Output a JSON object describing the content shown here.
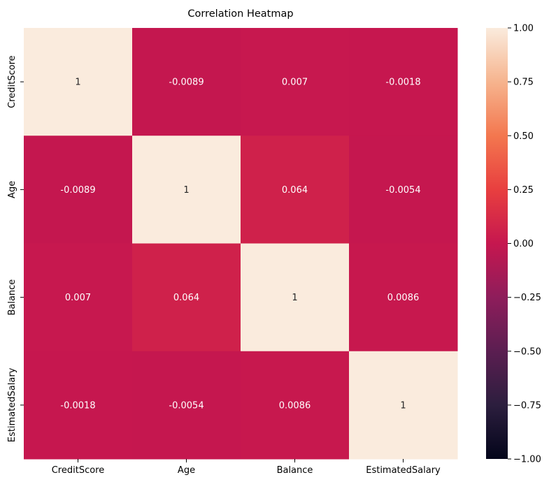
{
  "chart_data": {
    "type": "heatmap",
    "title": "Correlation Heatmap",
    "x_labels": [
      "CreditScore",
      "Age",
      "Balance",
      "EstimatedSalary"
    ],
    "y_labels": [
      "CreditScore",
      "Age",
      "Balance",
      "EstimatedSalary"
    ],
    "values": [
      [
        1,
        -0.0089,
        0.007,
        -0.0018
      ],
      [
        -0.0089,
        1,
        0.064,
        -0.0054
      ],
      [
        0.007,
        0.064,
        1,
        0.0086
      ],
      [
        -0.0018,
        -0.0054,
        0.0086,
        1
      ]
    ],
    "annotations": [
      [
        "1",
        "-0.0089",
        "0.007",
        "-0.0018"
      ],
      [
        "-0.0089",
        "1",
        "0.064",
        "-0.0054"
      ],
      [
        "0.007",
        "0.064",
        "1",
        "0.0086"
      ],
      [
        "-0.0018",
        "-0.0054",
        "0.0086",
        "1"
      ]
    ],
    "colorbar": {
      "range": [
        -1,
        1
      ],
      "ticks": [
        1.0,
        0.75,
        0.5,
        0.25,
        0.0,
        -0.25,
        -0.5,
        -0.75,
        -1.0
      ],
      "tick_labels": [
        "1.00",
        "0.75",
        "0.50",
        "0.25",
        "0.00",
        "−0.25",
        "−0.50",
        "−0.75",
        "−1.00"
      ],
      "colormap": "rocket"
    }
  }
}
